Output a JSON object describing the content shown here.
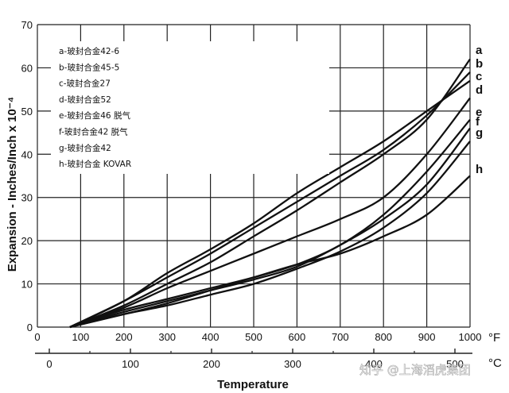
{
  "chart_data": {
    "type": "line",
    "title": "",
    "xlabel": "Temperature",
    "ylabel": "Expansion - Inches/Inch x 10⁻⁴",
    "x_unit_primary": "°F",
    "x_unit_secondary": "°C",
    "xlim": [
      0,
      1000
    ],
    "ylim": [
      0,
      70
    ],
    "grid": true,
    "x_ticks": [
      0,
      100,
      200,
      300,
      400,
      500,
      600,
      700,
      800,
      900,
      1000
    ],
    "y_ticks": [
      0,
      10,
      20,
      30,
      40,
      50,
      60,
      70
    ],
    "x2_ticks": [
      0,
      100,
      200,
      300,
      400,
      500
    ],
    "x2_minor_ticks": [
      50,
      150,
      250,
      350,
      450
    ],
    "legend": [
      "a-玻封合金42-6",
      "b-玻封合金45-5",
      "c-玻封合金27",
      "d-玻封合金52",
      "e-玻封合金46 脱气",
      "f-玻封合金42 脱气",
      "g-玻封合金42",
      "h-玻封合金 KOVAR"
    ],
    "legend_position": "top-left",
    "series": [
      {
        "name": "a",
        "x": [
          75,
          200,
          300,
          400,
          500,
          600,
          700,
          800,
          900,
          1000
        ],
        "y": [
          0,
          5,
          10,
          15,
          21,
          27,
          33.5,
          40,
          48,
          62
        ]
      },
      {
        "name": "b",
        "x": [
          75,
          200,
          300,
          400,
          500,
          600,
          700,
          800,
          900,
          1000
        ],
        "y": [
          0,
          6,
          11.5,
          17,
          23,
          29,
          35,
          41,
          49,
          59
        ]
      },
      {
        "name": "c",
        "x": [
          75,
          200,
          300,
          400,
          500,
          600,
          700,
          800,
          900,
          1000
        ],
        "y": [
          0,
          6,
          12.5,
          18,
          24,
          31,
          37,
          43,
          50,
          57
        ]
      },
      {
        "name": "d",
        "x": [
          75,
          200,
          300,
          400,
          500,
          600,
          700,
          800,
          900,
          1000
        ],
        "y": [
          0,
          4.5,
          9,
          13,
          17,
          21,
          25,
          30,
          40,
          53
        ]
      },
      {
        "name": "e",
        "x": [
          75,
          200,
          300,
          400,
          500,
          600,
          700,
          800,
          900,
          1000
        ],
        "y": [
          0,
          4,
          6.5,
          9,
          11.5,
          14.5,
          19,
          26,
          36,
          48
        ]
      },
      {
        "name": "f",
        "x": [
          75,
          200,
          300,
          400,
          500,
          600,
          700,
          800,
          900,
          1000
        ],
        "y": [
          0,
          3.5,
          6,
          8.5,
          11,
          14,
          19,
          25,
          33,
          46
        ]
      },
      {
        "name": "g",
        "x": [
          75,
          200,
          300,
          400,
          500,
          600,
          700,
          800,
          900,
          1000
        ],
        "y": [
          0,
          3,
          5,
          7.5,
          10,
          13.5,
          17.5,
          23,
          31,
          43
        ]
      },
      {
        "name": "h",
        "x": [
          75,
          200,
          300,
          400,
          500,
          600,
          700,
          800,
          900,
          1000
        ],
        "y": [
          0,
          3,
          5.5,
          8.5,
          11.5,
          14.5,
          17,
          21,
          26,
          35
        ]
      }
    ]
  },
  "watermark": "知乎 @上海滔虎集团"
}
